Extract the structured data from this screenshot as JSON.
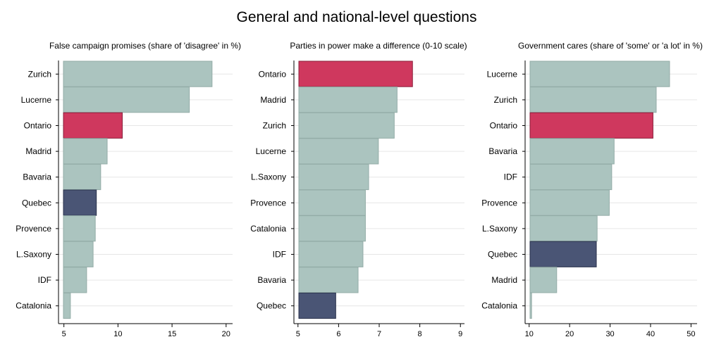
{
  "title": "General and national-level questions",
  "colors": {
    "default_fill": "#abc4bf",
    "default_stroke": "#93aca7",
    "highlight_fill": "#cf385e",
    "highlight_stroke": "#8a1f3b",
    "secondary_fill": "#4a5575",
    "secondary_stroke": "#2b334d",
    "gridline": "#e6e6e6"
  },
  "chart_data": [
    {
      "type": "bar",
      "orientation": "horizontal",
      "title": "False campaign promises (share of 'disagree' in %)",
      "categories": [
        "Zurich",
        "Lucerne",
        "Ontario",
        "Madrid",
        "Bavaria",
        "Quebec",
        "Provence",
        "L.Saxony",
        "IDF",
        "Catalonia"
      ],
      "values": [
        18.7,
        16.6,
        10.4,
        9.0,
        8.4,
        8.0,
        7.9,
        7.7,
        7.1,
        5.6
      ],
      "highlight": [
        "default",
        "default",
        "highlight",
        "default",
        "default",
        "secondary",
        "default",
        "default",
        "default",
        "default"
      ],
      "xlim": [
        4.5,
        20.6
      ],
      "xticks": [
        5,
        10,
        15,
        20
      ],
      "grid": true,
      "legend": "none"
    },
    {
      "type": "bar",
      "orientation": "horizontal",
      "title": "Parties in power make a difference (0-10 scale)",
      "categories": [
        "Ontario",
        "Madrid",
        "Zurich",
        "Lucerne",
        "L.Saxony",
        "Provence",
        "Catalonia",
        "IDF",
        "Bavaria",
        "Quebec"
      ],
      "values": [
        7.82,
        7.44,
        7.37,
        6.98,
        6.74,
        6.66,
        6.66,
        6.6,
        6.48,
        5.93
      ],
      "highlight": [
        "highlight",
        "default",
        "default",
        "default",
        "default",
        "default",
        "default",
        "default",
        "default",
        "secondary"
      ],
      "xlim": [
        4.9,
        9.1
      ],
      "xticks": [
        5,
        6,
        7,
        8,
        9
      ],
      "grid": true,
      "legend": "none"
    },
    {
      "type": "bar",
      "orientation": "horizontal",
      "title": "Government cares (share of 'some' or 'a lot' in %)",
      "categories": [
        "Lucerne",
        "Zurich",
        "Ontario",
        "Bavaria",
        "IDF",
        "Provence",
        "L.Saxony",
        "Quebec",
        "Madrid",
        "Catalonia"
      ],
      "values": [
        44.7,
        41.4,
        40.6,
        31.0,
        30.4,
        29.8,
        26.8,
        26.6,
        16.8,
        10.6
      ],
      "highlight": [
        "default",
        "default",
        "highlight",
        "default",
        "default",
        "default",
        "default",
        "secondary",
        "default",
        "default"
      ],
      "xlim": [
        9,
        51.5
      ],
      "xticks": [
        10,
        20,
        30,
        40,
        50
      ],
      "grid": true,
      "legend": "none"
    }
  ]
}
